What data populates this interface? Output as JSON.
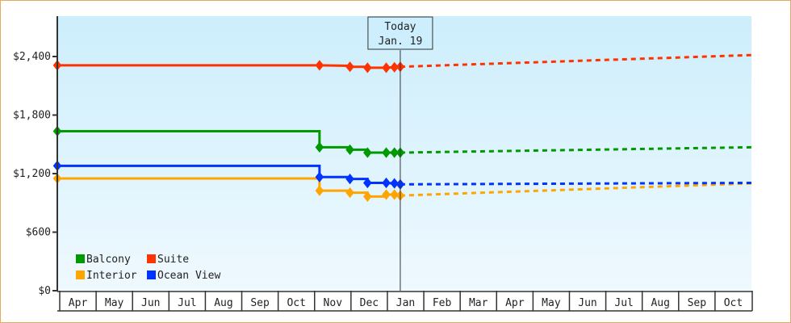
{
  "chart_data": {
    "type": "line",
    "title": "",
    "xlabel": "",
    "ylabel": "",
    "x_unit": "days since Apr 1",
    "x_range": [
      0,
      593
    ],
    "ylim": [
      0,
      2800
    ],
    "y_ticks": [
      0,
      600,
      1200,
      1800,
      2400
    ],
    "y_tick_labels": [
      "$0",
      "$600",
      "$1,200",
      "$1,800",
      "$2,400"
    ],
    "months": [
      "Apr",
      "May",
      "Jun",
      "Jul",
      "Aug",
      "Sep",
      "Oct",
      "Nov",
      "Dec",
      "Jan",
      "Feb",
      "Mar",
      "Apr",
      "May",
      "Jun",
      "Jul",
      "Aug",
      "Sep",
      "Oct"
    ],
    "today": {
      "label": "Today",
      "date": "Jan. 19",
      "x": 293
    },
    "legend_placement": "bottom-left",
    "series": [
      {
        "name": "Balcony",
        "color": "#009900",
        "history": [
          [
            0,
            1635
          ],
          [
            224,
            1635
          ],
          [
            224,
            1470
          ],
          [
            250,
            1470
          ],
          [
            250,
            1445
          ],
          [
            265,
            1445
          ],
          [
            265,
            1415
          ],
          [
            281,
            1415
          ],
          [
            288,
            1415
          ],
          [
            293,
            1415
          ]
        ],
        "markers": [
          0,
          224,
          250,
          265,
          281,
          288,
          293
        ],
        "forecast": [
          [
            293,
            1415
          ],
          [
            593,
            1470
          ]
        ]
      },
      {
        "name": "Suite",
        "color": "#ff3300",
        "history": [
          [
            0,
            2310
          ],
          [
            224,
            2310
          ],
          [
            250,
            2305
          ],
          [
            250,
            2295
          ],
          [
            265,
            2295
          ],
          [
            265,
            2285
          ],
          [
            281,
            2285
          ],
          [
            288,
            2290
          ],
          [
            293,
            2295
          ]
        ],
        "markers": [
          0,
          224,
          250,
          265,
          281,
          288,
          293
        ],
        "forecast": [
          [
            293,
            2295
          ],
          [
            593,
            2415
          ]
        ]
      },
      {
        "name": "Interior",
        "color": "#ffa500",
        "history": [
          [
            0,
            1150
          ],
          [
            224,
            1150
          ],
          [
            224,
            1025
          ],
          [
            250,
            1025
          ],
          [
            250,
            1005
          ],
          [
            265,
            1005
          ],
          [
            265,
            965
          ],
          [
            281,
            965
          ],
          [
            281,
            985
          ],
          [
            288,
            985
          ],
          [
            293,
            975
          ]
        ],
        "markers": [
          0,
          224,
          250,
          265,
          281,
          288,
          293
        ],
        "forecast": [
          [
            293,
            975
          ],
          [
            593,
            1100
          ]
        ]
      },
      {
        "name": "Ocean View",
        "color": "#0033ff",
        "history": [
          [
            0,
            1280
          ],
          [
            224,
            1280
          ],
          [
            224,
            1165
          ],
          [
            250,
            1165
          ],
          [
            250,
            1145
          ],
          [
            265,
            1145
          ],
          [
            265,
            1105
          ],
          [
            281,
            1105
          ],
          [
            288,
            1100
          ],
          [
            293,
            1090
          ]
        ],
        "markers": [
          0,
          224,
          250,
          265,
          281,
          288,
          293
        ],
        "forecast": [
          [
            293,
            1090
          ],
          [
            593,
            1105
          ]
        ]
      }
    ]
  }
}
